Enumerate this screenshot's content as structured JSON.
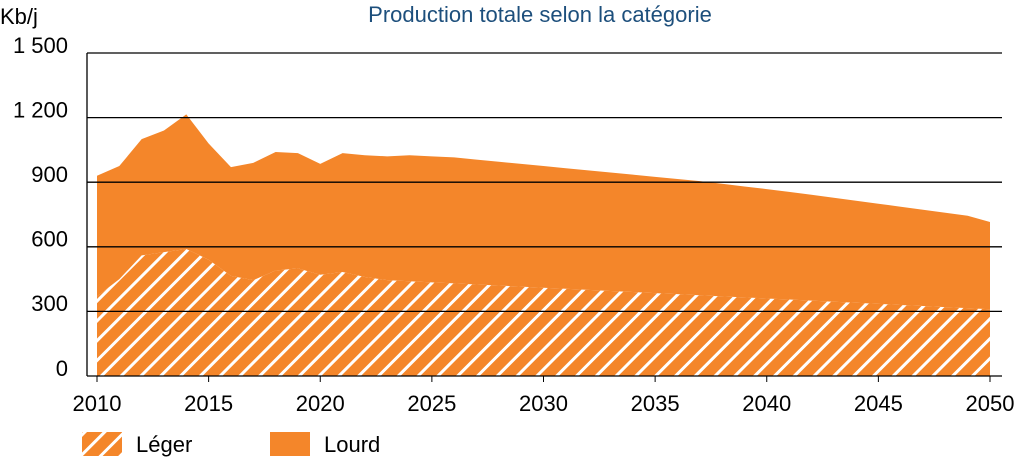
{
  "chart_data": {
    "type": "stacked-area",
    "title": "Production totale selon la catégorie",
    "y_label": "Kb/j",
    "x": [
      2010,
      2011,
      2012,
      2013,
      2014,
      2015,
      2016,
      2017,
      2018,
      2019,
      2020,
      2021,
      2022,
      2023,
      2024,
      2025,
      2026,
      2027,
      2028,
      2029,
      2030,
      2031,
      2032,
      2033,
      2034,
      2035,
      2036,
      2037,
      2038,
      2039,
      2040,
      2041,
      2042,
      2043,
      2044,
      2045,
      2046,
      2047,
      2048,
      2049,
      2050
    ],
    "series": [
      {
        "name": "Léger",
        "color": "#f4862a",
        "hatch": true,
        "values": [
          370,
          450,
          560,
          575,
          590,
          540,
          465,
          445,
          490,
          500,
          470,
          483,
          460,
          445,
          440,
          435,
          430,
          425,
          420,
          415,
          410,
          405,
          400,
          395,
          390,
          385,
          380,
          375,
          370,
          365,
          360,
          355,
          350,
          345,
          340,
          335,
          330,
          325,
          320,
          315,
          310
        ]
      },
      {
        "name": "Lourd",
        "color": "#f4862a",
        "hatch": false,
        "values": [
          560,
          525,
          540,
          565,
          625,
          540,
          505,
          545,
          550,
          535,
          515,
          552,
          565,
          575,
          585,
          585,
          585,
          580,
          575,
          570,
          565,
          560,
          555,
          550,
          545,
          540,
          535,
          530,
          523,
          515,
          508,
          500,
          492,
          483,
          474,
          465,
          456,
          447,
          438,
          429,
          405
        ]
      }
    ],
    "xlim": [
      2010,
      2050
    ],
    "xticks": [
      2010,
      2015,
      2020,
      2025,
      2030,
      2035,
      2040,
      2045,
      2050
    ],
    "ylim": [
      0,
      1500
    ],
    "yticks": [
      0,
      300,
      600,
      900,
      {
        "value": 1200,
        "label": "1 200"
      },
      {
        "value": 1500,
        "label": "1 500"
      }
    ],
    "grid": true
  }
}
